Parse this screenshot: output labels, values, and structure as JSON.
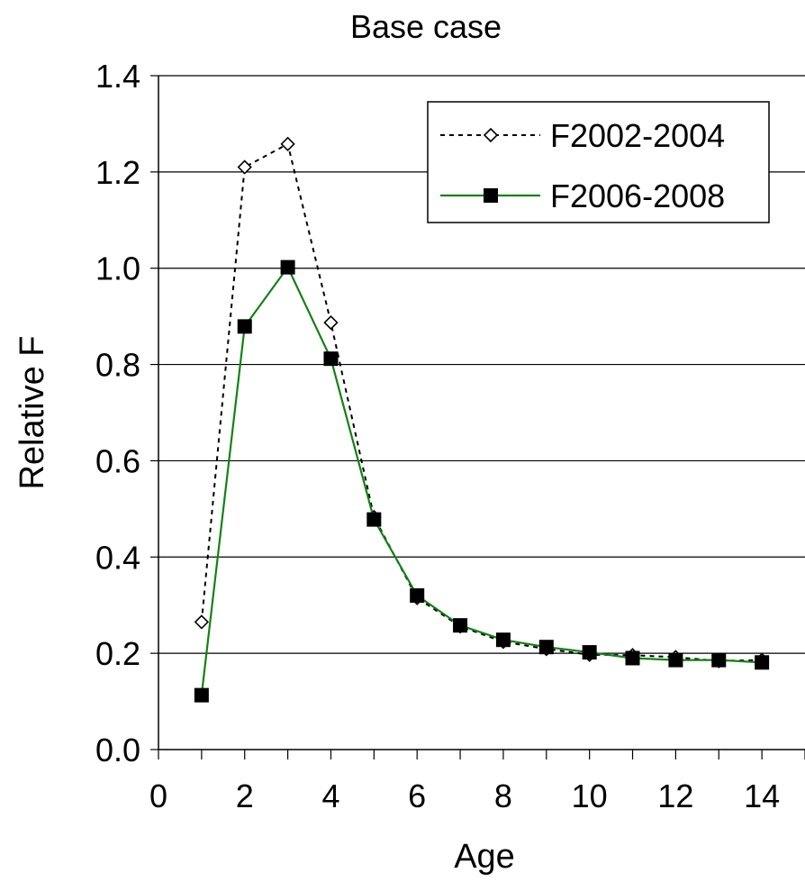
{
  "chart_data": {
    "type": "line",
    "title": "Base case",
    "xlabel": "Age",
    "ylabel": "Relative F",
    "xlim": [
      0,
      15
    ],
    "ylim": [
      0.0,
      1.4
    ],
    "xticks": [
      0,
      2,
      4,
      6,
      8,
      10,
      12,
      14
    ],
    "xtick_labels": [
      "0",
      "2",
      "4",
      "6",
      "8",
      "10",
      "12",
      "14"
    ],
    "yticks": [
      0.0,
      0.2,
      0.4,
      0.6,
      0.8,
      1.0,
      1.2,
      1.4
    ],
    "ytick_labels": [
      "0.0",
      "0.2",
      "0.4",
      "0.6",
      "0.8",
      "1.0",
      "1.2",
      "1.4"
    ],
    "grid": "horizontal",
    "legend_position": "top-right",
    "x": [
      1,
      2,
      3,
      4,
      5,
      6,
      7,
      8,
      9,
      10,
      11,
      12,
      13,
      14
    ],
    "series": [
      {
        "name": "F2002-2004",
        "color": "#000000",
        "line_style": "dotted",
        "marker": "open-diamond",
        "values": [
          0.265,
          1.21,
          1.258,
          0.887,
          0.483,
          0.315,
          0.256,
          0.224,
          0.209,
          0.197,
          0.196,
          0.192,
          0.184,
          0.186
        ]
      },
      {
        "name": "F2006-2008",
        "color": "#138213",
        "line_style": "solid",
        "marker": "filled-square",
        "values": [
          0.113,
          0.879,
          1.002,
          0.812,
          0.478,
          0.32,
          0.258,
          0.228,
          0.213,
          0.202,
          0.19,
          0.186,
          0.186,
          0.181
        ]
      }
    ]
  }
}
